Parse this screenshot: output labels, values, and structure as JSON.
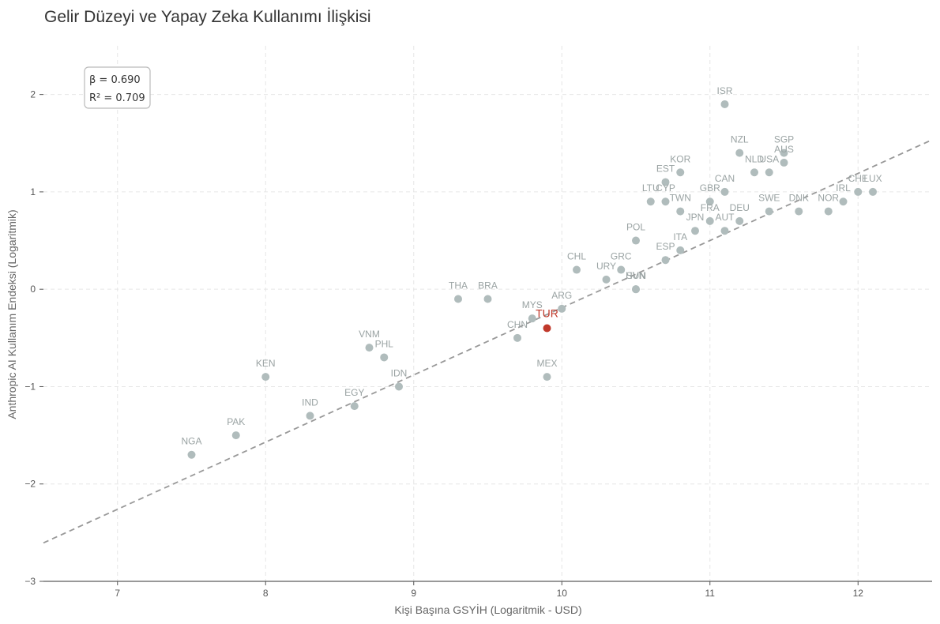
{
  "chart_data": {
    "type": "scatter",
    "title": "Gelir Düzeyi ve Yapay Zeka Kullanımı İlişkisi",
    "xlabel": "Kişi Başına GSYİH (Logaritmik - USD)",
    "ylabel": "Anthropic AI Kullanım Endeksi (Logaritmik)",
    "xlim": [
      6.5,
      12.5
    ],
    "ylim": [
      -3,
      2.5
    ],
    "xticks": [
      7,
      8,
      9,
      10,
      11,
      12
    ],
    "yticks": [
      -3,
      -2,
      -1,
      0,
      1,
      2
    ],
    "ytick_labels": [
      "−3",
      "−2",
      "−1",
      "0",
      "1",
      "2"
    ],
    "grid": true,
    "stats": {
      "beta": "β = 0.690",
      "r2": "R² = 0.709"
    },
    "fit_line": {
      "slope": 0.69,
      "intercept": -7.09,
      "style": "dashed"
    },
    "highlight": "TUR",
    "colors": {
      "point": "#b0bcbc",
      "highlight": "#c0392b",
      "fit_line": "#999999",
      "text": "#333333"
    },
    "points": [
      {
        "label": "NGA",
        "x": 7.5,
        "y": -1.7
      },
      {
        "label": "PAK",
        "x": 7.8,
        "y": -1.5
      },
      {
        "label": "KEN",
        "x": 8.0,
        "y": -0.9
      },
      {
        "label": "IND",
        "x": 8.3,
        "y": -1.3
      },
      {
        "label": "EGY",
        "x": 8.6,
        "y": -1.2
      },
      {
        "label": "VNM",
        "x": 8.7,
        "y": -0.6
      },
      {
        "label": "PHL",
        "x": 8.8,
        "y": -0.7
      },
      {
        "label": "IDN",
        "x": 8.9,
        "y": -1.0
      },
      {
        "label": "THA",
        "x": 9.3,
        "y": -0.1
      },
      {
        "label": "BRA",
        "x": 9.5,
        "y": -0.1
      },
      {
        "label": "CHN",
        "x": 9.7,
        "y": -0.5
      },
      {
        "label": "MYS",
        "x": 9.8,
        "y": -0.3
      },
      {
        "label": "TUR",
        "x": 9.9,
        "y": -0.4
      },
      {
        "label": "MEX",
        "x": 9.9,
        "y": -0.9
      },
      {
        "label": "ARG",
        "x": 10.0,
        "y": -0.2
      },
      {
        "label": "CHL",
        "x": 10.1,
        "y": 0.2
      },
      {
        "label": "URY",
        "x": 10.3,
        "y": 0.1
      },
      {
        "label": "GRC",
        "x": 10.4,
        "y": 0.2
      },
      {
        "label": "HUN",
        "x": 10.5,
        "y": 0.0
      },
      {
        "label": "SVN",
        "x": 10.5,
        "y": 0.0
      },
      {
        "label": "POL",
        "x": 10.5,
        "y": 0.5
      },
      {
        "label": "LTU",
        "x": 10.6,
        "y": 0.9
      },
      {
        "label": "ESP",
        "x": 10.7,
        "y": 0.3
      },
      {
        "label": "CYP",
        "x": 10.7,
        "y": 0.9
      },
      {
        "label": "EST",
        "x": 10.7,
        "y": 1.1
      },
      {
        "label": "ITA",
        "x": 10.8,
        "y": 0.4
      },
      {
        "label": "TWN",
        "x": 10.8,
        "y": 0.8
      },
      {
        "label": "KOR",
        "x": 10.8,
        "y": 1.2
      },
      {
        "label": "JPN",
        "x": 10.9,
        "y": 0.6
      },
      {
        "label": "FRA",
        "x": 11.0,
        "y": 0.7
      },
      {
        "label": "GBR",
        "x": 11.0,
        "y": 0.9
      },
      {
        "label": "AUT",
        "x": 11.1,
        "y": 0.6
      },
      {
        "label": "CAN",
        "x": 11.1,
        "y": 1.0
      },
      {
        "label": "ISR",
        "x": 11.1,
        "y": 1.9
      },
      {
        "label": "DEU",
        "x": 11.2,
        "y": 0.7
      },
      {
        "label": "NZL",
        "x": 11.2,
        "y": 1.4
      },
      {
        "label": "NLD",
        "x": 11.3,
        "y": 1.2
      },
      {
        "label": "SWE",
        "x": 11.4,
        "y": 0.8
      },
      {
        "label": "USA",
        "x": 11.4,
        "y": 1.2
      },
      {
        "label": "AUS",
        "x": 11.5,
        "y": 1.3
      },
      {
        "label": "SGP",
        "x": 11.5,
        "y": 1.4
      },
      {
        "label": "DNK",
        "x": 11.6,
        "y": 0.8
      },
      {
        "label": "NOR",
        "x": 11.8,
        "y": 0.8
      },
      {
        "label": "IRL",
        "x": 11.9,
        "y": 0.9
      },
      {
        "label": "CHE",
        "x": 12.0,
        "y": 1.0
      },
      {
        "label": "LUX",
        "x": 12.1,
        "y": 1.0
      }
    ]
  }
}
